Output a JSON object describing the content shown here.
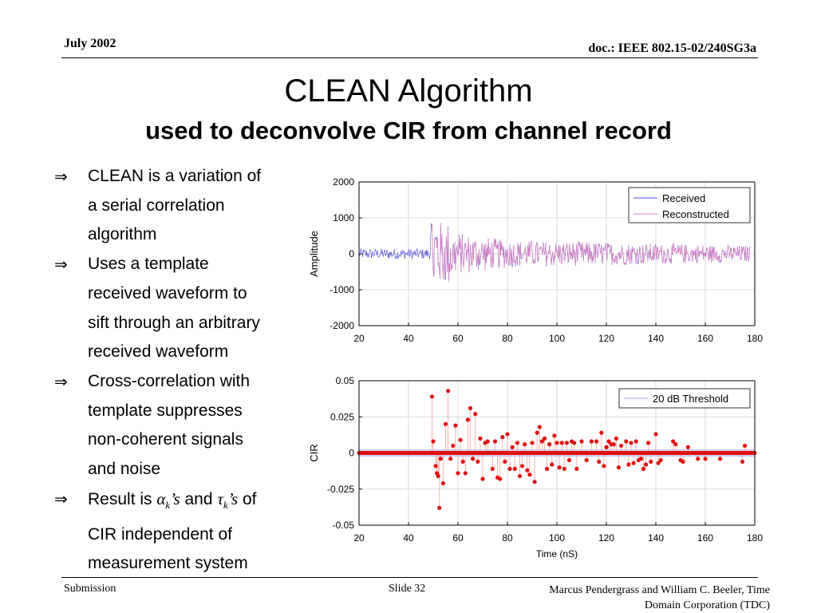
{
  "header": {
    "date": "July 2002",
    "doc": "doc.: IEEE 802.15-02/240SG3a"
  },
  "title": {
    "main": "CLEAN Algorithm",
    "sub": "used to deconvolve CIR from channel record"
  },
  "bullets": {
    "b1": [
      "CLEAN is a variation of",
      "a serial correlation",
      "algorithm"
    ],
    "b2": [
      "Uses a template",
      "received waveform to",
      "sift through an arbitrary",
      "received waveform"
    ],
    "b3": [
      "Cross-correlation with",
      "template suppresses",
      "non-coherent signals",
      "and noise"
    ],
    "b4": {
      "pre": "Result is ",
      "alpha": "α",
      "sub_k": "k",
      "s1": "’s",
      "mid": " and ",
      "tau": "τ",
      "s2": "’s",
      "post": " of",
      "l2": "CIR independent of",
      "l3": "measurement system"
    }
  },
  "footer": {
    "submission": "Submission",
    "slide": "Slide 32",
    "author1": "Marcus Pendergrass and William C. Beeler, Time",
    "author2": "Domain Corporation (TDC)"
  },
  "colors": {
    "received": "#4a4ae0",
    "reconstructed": "#d880c0",
    "cir": "#e01010",
    "threshold": "#9aa0f0"
  },
  "chart_data": [
    {
      "type": "line",
      "xlim": [
        20,
        180
      ],
      "ylim": [
        -2000,
        2000
      ],
      "ylabel": "Amplitude",
      "xticks": [
        20,
        40,
        60,
        80,
        100,
        120,
        140,
        160,
        180
      ],
      "yticks": [
        2000,
        1000,
        0,
        -1000,
        -2000
      ],
      "grid": true,
      "legend": {
        "position": "top-right",
        "entries": [
          "Received",
          "Reconstructed"
        ]
      },
      "series": [
        {
          "name": "Received",
          "note": "noise ~±150 from 20-50; burst ±1400 at 50-60; decaying ±700 to ±300 after"
        },
        {
          "name": "Reconstructed",
          "note": "overlays Received from ~50 ns onward"
        }
      ]
    },
    {
      "type": "scatter",
      "xlim": [
        20,
        180
      ],
      "ylim": [
        -0.05,
        0.05
      ],
      "xlabel": "Time (nS)",
      "ylabel": "CIR",
      "xticks": [
        20,
        40,
        60,
        80,
        100,
        120,
        140,
        160,
        180
      ],
      "yticks": [
        0.05,
        0.025,
        0,
        -0.025,
        -0.05
      ],
      "ytick_labels": [
        "0.05",
        "0.025",
        "0",
        "-0.025",
        "-0.05"
      ],
      "grid": true,
      "legend": {
        "position": "top-right",
        "entries": [
          "20 dB Threshold"
        ]
      },
      "threshold": 0.002,
      "points": [
        [
          49.5,
          0.039
        ],
        [
          50,
          0.008
        ],
        [
          51,
          -0.009
        ],
        [
          51.5,
          -0.014
        ],
        [
          52,
          -0.016
        ],
        [
          52.5,
          -0.038
        ],
        [
          53,
          -0.004
        ],
        [
          54,
          -0.021
        ],
        [
          55,
          0.02
        ],
        [
          56,
          0.043
        ],
        [
          57,
          -0.004
        ],
        [
          58,
          0.005
        ],
        [
          59,
          0.019
        ],
        [
          60,
          -0.014
        ],
        [
          61,
          0.009
        ],
        [
          62,
          -0.006
        ],
        [
          63,
          -0.014
        ],
        [
          64,
          0.023
        ],
        [
          65,
          0.031
        ],
        [
          66,
          -0.004
        ],
        [
          67,
          0.027
        ],
        [
          68,
          -0.006
        ],
        [
          69,
          0.01
        ],
        [
          70,
          -0.018
        ],
        [
          71,
          0.007
        ],
        [
          72,
          0.008
        ],
        [
          74,
          -0.011
        ],
        [
          75,
          0.008
        ],
        [
          76,
          -0.017
        ],
        [
          77,
          -0.018
        ],
        [
          78,
          0.011
        ],
        [
          79,
          -0.006
        ],
        [
          80,
          0.013
        ],
        [
          81,
          -0.011
        ],
        [
          82,
          0.004
        ],
        [
          83,
          -0.011
        ],
        [
          84,
          0.007
        ],
        [
          85,
          -0.016
        ],
        [
          86,
          -0.009
        ],
        [
          87,
          0.006
        ],
        [
          88,
          -0.012
        ],
        [
          89,
          -0.015
        ],
        [
          90,
          0.007
        ],
        [
          91,
          -0.02
        ],
        [
          92,
          0.014
        ],
        [
          93,
          0.018
        ],
        [
          94,
          0.008
        ],
        [
          95,
          0.01
        ],
        [
          96,
          -0.011
        ],
        [
          97,
          0.006
        ],
        [
          98,
          -0.008
        ],
        [
          99,
          0.012
        ],
        [
          100,
          0.007
        ],
        [
          101,
          -0.01
        ],
        [
          102,
          0.007
        ],
        [
          103,
          -0.011
        ],
        [
          104,
          0.007
        ],
        [
          105,
          -0.005
        ],
        [
          106,
          0.008
        ],
        [
          107,
          0.007
        ],
        [
          108,
          -0.011
        ],
        [
          110,
          0.008
        ],
        [
          112,
          -0.005
        ],
        [
          114,
          0.008
        ],
        [
          116,
          0.008
        ],
        [
          117,
          -0.006
        ],
        [
          118,
          0.014
        ],
        [
          119,
          -0.009
        ],
        [
          120,
          0.004
        ],
        [
          121,
          0.008
        ],
        [
          122,
          0.006
        ],
        [
          123,
          0.006
        ],
        [
          124,
          0.01
        ],
        [
          125,
          -0.01
        ],
        [
          126,
          0.005
        ],
        [
          128,
          0.008
        ],
        [
          129,
          -0.008
        ],
        [
          130,
          0.007
        ],
        [
          131,
          -0.007
        ],
        [
          132,
          0.008
        ],
        [
          133,
          -0.005
        ],
        [
          134,
          -0.004
        ],
        [
          135,
          -0.011
        ],
        [
          136,
          -0.008
        ],
        [
          137,
          0.007
        ],
        [
          138,
          -0.006
        ],
        [
          140,
          0.013
        ],
        [
          141,
          -0.007
        ],
        [
          142,
          -0.005
        ],
        [
          147,
          0.008
        ],
        [
          148,
          0.006
        ],
        [
          150,
          -0.005
        ],
        [
          151,
          -0.006
        ],
        [
          153,
          0.004
        ],
        [
          157,
          -0.004
        ],
        [
          160,
          -0.004
        ],
        [
          166,
          -0.004
        ],
        [
          175,
          -0.006
        ],
        [
          176,
          0.005
        ]
      ]
    }
  ]
}
